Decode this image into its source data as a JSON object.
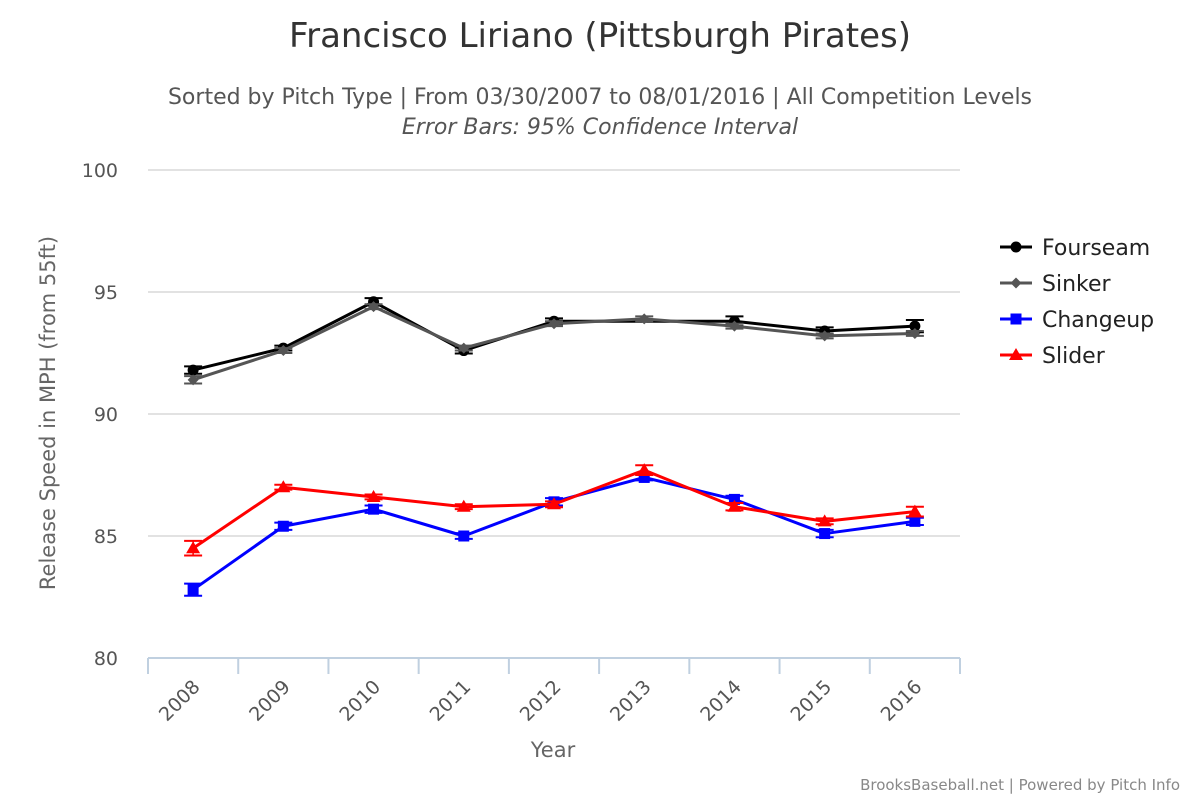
{
  "chart_data": {
    "type": "line",
    "title": "Francisco Liriano (Pittsburgh Pirates)",
    "subtitle": "Sorted by Pitch Type | From 03/30/2007 to 08/01/2016 | All Competition Levels",
    "subtitle2": "Error Bars: 95% Confidence Interval",
    "xlabel": "Year",
    "ylabel": "Release Speed in MPH (from 55ft)",
    "categories": [
      "2008",
      "2009",
      "2010",
      "2011",
      "2012",
      "2013",
      "2014",
      "2015",
      "2016"
    ],
    "ylim": [
      80,
      100
    ],
    "yticks": [
      80,
      85,
      90,
      95,
      100
    ],
    "grid": true,
    "legend_position": "right",
    "credits": "BrooksBaseball.net | Powered by Pitch Info",
    "series": [
      {
        "name": "Fourseam",
        "color": "#000000",
        "marker": "circle",
        "values": [
          91.8,
          92.7,
          94.6,
          92.6,
          93.8,
          null,
          93.8,
          93.4,
          93.6
        ],
        "err": [
          0.15,
          0.1,
          0.15,
          0.12,
          0.12,
          null,
          0.2,
          0.15,
          0.25
        ]
      },
      {
        "name": "Sinker",
        "color": "#555555",
        "marker": "diamond",
        "values": [
          91.4,
          92.6,
          94.4,
          92.7,
          93.7,
          93.9,
          93.6,
          93.2,
          93.3
        ],
        "err": [
          0.15,
          0.1,
          0.1,
          0.1,
          0.1,
          0.1,
          0.1,
          0.1,
          0.1
        ]
      },
      {
        "name": "Changeup",
        "color": "#0000ff",
        "marker": "square",
        "values": [
          82.8,
          85.4,
          86.1,
          85.0,
          86.4,
          87.4,
          86.5,
          85.1,
          85.6
        ],
        "err": [
          0.25,
          0.15,
          0.15,
          0.12,
          0.15,
          0.12,
          0.15,
          0.15,
          0.15
        ]
      },
      {
        "name": "Slider",
        "color": "#ff0000",
        "marker": "triangle",
        "values": [
          84.5,
          87.0,
          86.6,
          86.2,
          86.3,
          87.7,
          86.2,
          85.6,
          86.0
        ],
        "err": [
          0.3,
          0.1,
          0.1,
          0.1,
          0.12,
          0.2,
          0.15,
          0.12,
          0.2
        ]
      }
    ]
  }
}
